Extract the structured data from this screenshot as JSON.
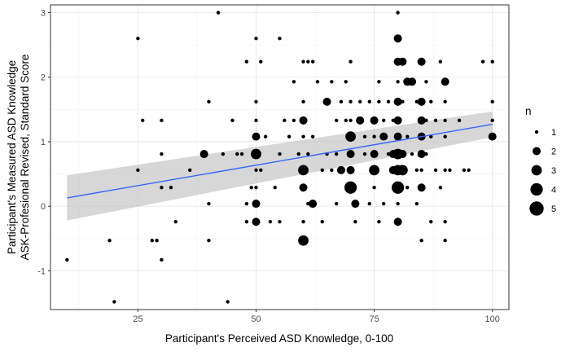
{
  "chart_data": {
    "type": "scatter",
    "xlabel": "Participant's Perceived ASD Knowledge, 0-100",
    "ylabel_line1": "Participant's Measured ASD Knowledge",
    "ylabel_line2": "ASK-Profesional Revised, Standard Score",
    "xlim": [
      6.5,
      103.5
    ],
    "ylim": [
      -1.6,
      3.12
    ],
    "x_ticks": [
      25,
      50,
      75,
      100
    ],
    "y_ticks": [
      -1,
      0,
      1,
      2,
      3
    ],
    "x_minor": [
      12.5,
      37.5,
      62.5,
      87.5
    ],
    "y_minor": [
      -0.5,
      0.5,
      1.5,
      2.5
    ],
    "grid": true,
    "legend": {
      "title": "n",
      "placement": "right",
      "entries": [
        1,
        2,
        3,
        4,
        5
      ]
    },
    "trend": {
      "method": "linear fit with confidence band",
      "color": "#3366FF",
      "band_color": "#bdbdbd",
      "x": [
        10,
        100
      ],
      "y": [
        0.13,
        1.27
      ],
      "band_lower": [
        -0.22,
        1.07
      ],
      "band_upper": [
        0.48,
        1.47
      ]
    },
    "points": [
      {
        "x": 10,
        "y": -0.83,
        "n": 1
      },
      {
        "x": 19,
        "y": -0.53,
        "n": 1
      },
      {
        "x": 20,
        "y": -1.48,
        "n": 1
      },
      {
        "x": 25,
        "y": 2.6,
        "n": 1
      },
      {
        "x": 25,
        "y": 0.56,
        "n": 1
      },
      {
        "x": 26,
        "y": 1.33,
        "n": 1
      },
      {
        "x": 28,
        "y": -0.53,
        "n": 1
      },
      {
        "x": 29,
        "y": -0.53,
        "n": 1
      },
      {
        "x": 30,
        "y": 1.33,
        "n": 1
      },
      {
        "x": 30,
        "y": 0.81,
        "n": 1
      },
      {
        "x": 30,
        "y": 0.29,
        "n": 1
      },
      {
        "x": 30,
        "y": -0.83,
        "n": 1
      },
      {
        "x": 32,
        "y": 0.29,
        "n": 1
      },
      {
        "x": 33,
        "y": -0.24,
        "n": 1
      },
      {
        "x": 36,
        "y": 0.56,
        "n": 1
      },
      {
        "x": 39,
        "y": 0.81,
        "n": 2
      },
      {
        "x": 40,
        "y": 1.62,
        "n": 1
      },
      {
        "x": 40,
        "y": 0.04,
        "n": 1
      },
      {
        "x": 40,
        "y": -0.53,
        "n": 1
      },
      {
        "x": 42,
        "y": 3.0,
        "n": 1
      },
      {
        "x": 43,
        "y": 0.81,
        "n": 1
      },
      {
        "x": 44,
        "y": -1.48,
        "n": 1
      },
      {
        "x": 45,
        "y": 1.33,
        "n": 1
      },
      {
        "x": 46,
        "y": 0.81,
        "n": 1
      },
      {
        "x": 47,
        "y": 0.81,
        "n": 1
      },
      {
        "x": 48,
        "y": 2.24,
        "n": 1
      },
      {
        "x": 48,
        "y": 0.04,
        "n": 1
      },
      {
        "x": 48,
        "y": -0.24,
        "n": 1
      },
      {
        "x": 49,
        "y": 0.29,
        "n": 1
      },
      {
        "x": 50,
        "y": 2.6,
        "n": 1
      },
      {
        "x": 50,
        "y": 1.62,
        "n": 1
      },
      {
        "x": 50,
        "y": 1.33,
        "n": 1
      },
      {
        "x": 50,
        "y": 1.08,
        "n": 2
      },
      {
        "x": 50,
        "y": 0.81,
        "n": 3
      },
      {
        "x": 50,
        "y": 0.56,
        "n": 1
      },
      {
        "x": 50,
        "y": 0.29,
        "n": 1
      },
      {
        "x": 50,
        "y": 0.04,
        "n": 2
      },
      {
        "x": 50,
        "y": -0.24,
        "n": 2
      },
      {
        "x": 51,
        "y": 2.24,
        "n": 1
      },
      {
        "x": 51,
        "y": 0.56,
        "n": 1
      },
      {
        "x": 52,
        "y": 1.08,
        "n": 1
      },
      {
        "x": 53,
        "y": -0.24,
        "n": 1
      },
      {
        "x": 54,
        "y": 0.29,
        "n": 1
      },
      {
        "x": 55,
        "y": 2.6,
        "n": 1
      },
      {
        "x": 55,
        "y": 0.81,
        "n": 1
      },
      {
        "x": 55,
        "y": -0.24,
        "n": 1
      },
      {
        "x": 56,
        "y": 1.33,
        "n": 1
      },
      {
        "x": 57,
        "y": 1.08,
        "n": 1
      },
      {
        "x": 58,
        "y": 1.93,
        "n": 1
      },
      {
        "x": 58,
        "y": 1.33,
        "n": 1
      },
      {
        "x": 59,
        "y": 0.81,
        "n": 1
      },
      {
        "x": 60,
        "y": 2.24,
        "n": 1
      },
      {
        "x": 60,
        "y": 1.62,
        "n": 1
      },
      {
        "x": 60,
        "y": 1.33,
        "n": 2
      },
      {
        "x": 60,
        "y": 1.08,
        "n": 1
      },
      {
        "x": 60,
        "y": 0.56,
        "n": 3
      },
      {
        "x": 60,
        "y": 0.29,
        "n": 2
      },
      {
        "x": 60,
        "y": -0.24,
        "n": 1
      },
      {
        "x": 60,
        "y": -0.53,
        "n": 3
      },
      {
        "x": 61,
        "y": 2.24,
        "n": 1
      },
      {
        "x": 61,
        "y": 0.81,
        "n": 1
      },
      {
        "x": 61,
        "y": 0.04,
        "n": 1
      },
      {
        "x": 62,
        "y": 2.24,
        "n": 1
      },
      {
        "x": 62,
        "y": 1.08,
        "n": 1
      },
      {
        "x": 62,
        "y": 0.04,
        "n": 2
      },
      {
        "x": 63,
        "y": 1.93,
        "n": 1
      },
      {
        "x": 64,
        "y": 0.56,
        "n": 1
      },
      {
        "x": 64,
        "y": -0.24,
        "n": 1
      },
      {
        "x": 65,
        "y": 1.62,
        "n": 2
      },
      {
        "x": 65,
        "y": 0.81,
        "n": 1
      },
      {
        "x": 66,
        "y": 1.93,
        "n": 1
      },
      {
        "x": 66,
        "y": 0.56,
        "n": 1
      },
      {
        "x": 67,
        "y": 1.33,
        "n": 1
      },
      {
        "x": 67,
        "y": 0.81,
        "n": 1
      },
      {
        "x": 67,
        "y": 0.04,
        "n": 1
      },
      {
        "x": 68,
        "y": 1.62,
        "n": 1
      },
      {
        "x": 68,
        "y": 0.56,
        "n": 2
      },
      {
        "x": 69,
        "y": 1.93,
        "n": 1
      },
      {
        "x": 69,
        "y": 1.33,
        "n": 1
      },
      {
        "x": 70,
        "y": 2.24,
        "n": 1
      },
      {
        "x": 70,
        "y": 1.62,
        "n": 1
      },
      {
        "x": 70,
        "y": 1.33,
        "n": 1
      },
      {
        "x": 70,
        "y": 1.08,
        "n": 3
      },
      {
        "x": 70,
        "y": 0.81,
        "n": 2
      },
      {
        "x": 70,
        "y": 0.56,
        "n": 2
      },
      {
        "x": 70,
        "y": 0.29,
        "n": 4
      },
      {
        "x": 71,
        "y": 0.04,
        "n": 2
      },
      {
        "x": 71,
        "y": -0.24,
        "n": 1
      },
      {
        "x": 72,
        "y": 1.62,
        "n": 1
      },
      {
        "x": 72,
        "y": 1.33,
        "n": 2
      },
      {
        "x": 73,
        "y": 1.08,
        "n": 1
      },
      {
        "x": 73,
        "y": 0.81,
        "n": 1
      },
      {
        "x": 74,
        "y": 1.62,
        "n": 1
      },
      {
        "x": 74,
        "y": 0.04,
        "n": 1
      },
      {
        "x": 75,
        "y": 1.33,
        "n": 2
      },
      {
        "x": 75,
        "y": 1.08,
        "n": 1
      },
      {
        "x": 75,
        "y": 0.81,
        "n": 2
      },
      {
        "x": 75,
        "y": 0.56,
        "n": 3
      },
      {
        "x": 75,
        "y": 0.29,
        "n": 1
      },
      {
        "x": 76,
        "y": 1.93,
        "n": 1
      },
      {
        "x": 76,
        "y": 1.62,
        "n": 1
      },
      {
        "x": 76,
        "y": -0.24,
        "n": 1
      },
      {
        "x": 77,
        "y": 1.33,
        "n": 1
      },
      {
        "x": 77,
        "y": 1.08,
        "n": 2
      },
      {
        "x": 77,
        "y": 0.04,
        "n": 1
      },
      {
        "x": 78,
        "y": 1.62,
        "n": 1
      },
      {
        "x": 78,
        "y": 0.81,
        "n": 1
      },
      {
        "x": 79,
        "y": 0.56,
        "n": 2
      },
      {
        "x": 79,
        "y": 1.33,
        "n": 1
      },
      {
        "x": 79,
        "y": 0.81,
        "n": 2
      },
      {
        "x": 80,
        "y": 3.0,
        "n": 1
      },
      {
        "x": 80,
        "y": 2.6,
        "n": 2
      },
      {
        "x": 80,
        "y": 2.24,
        "n": 2
      },
      {
        "x": 80,
        "y": 1.93,
        "n": 1
      },
      {
        "x": 80,
        "y": 1.62,
        "n": 2
      },
      {
        "x": 80,
        "y": 1.33,
        "n": 2
      },
      {
        "x": 80,
        "y": 1.08,
        "n": 2
      },
      {
        "x": 80,
        "y": 0.81,
        "n": 3
      },
      {
        "x": 80,
        "y": 0.56,
        "n": 3
      },
      {
        "x": 80,
        "y": 0.29,
        "n": 4
      },
      {
        "x": 80,
        "y": 0.04,
        "n": 1
      },
      {
        "x": 80,
        "y": -0.24,
        "n": 2
      },
      {
        "x": 81,
        "y": 2.24,
        "n": 2
      },
      {
        "x": 81,
        "y": 1.62,
        "n": 1
      },
      {
        "x": 81,
        "y": 0.81,
        "n": 2
      },
      {
        "x": 81,
        "y": 0.56,
        "n": 3
      },
      {
        "x": 82,
        "y": 1.93,
        "n": 2
      },
      {
        "x": 82,
        "y": 1.08,
        "n": 1
      },
      {
        "x": 82,
        "y": 0.29,
        "n": 1
      },
      {
        "x": 83,
        "y": 1.93,
        "n": 2
      },
      {
        "x": 83,
        "y": 0.81,
        "n": 1
      },
      {
        "x": 84,
        "y": 1.62,
        "n": 1
      },
      {
        "x": 84,
        "y": 0.56,
        "n": 1
      },
      {
        "x": 84,
        "y": 0.04,
        "n": 1
      },
      {
        "x": 85,
        "y": 2.24,
        "n": 2
      },
      {
        "x": 85,
        "y": 1.62,
        "n": 2
      },
      {
        "x": 85,
        "y": 1.33,
        "n": 2
      },
      {
        "x": 85,
        "y": 1.08,
        "n": 2
      },
      {
        "x": 85,
        "y": 0.81,
        "n": 2
      },
      {
        "x": 85,
        "y": 0.56,
        "n": 1
      },
      {
        "x": 85,
        "y": 0.29,
        "n": 2
      },
      {
        "x": 85,
        "y": -0.53,
        "n": 1
      },
      {
        "x": 86,
        "y": 1.93,
        "n": 1
      },
      {
        "x": 86,
        "y": 1.33,
        "n": 1
      },
      {
        "x": 86,
        "y": 0.81,
        "n": 1
      },
      {
        "x": 87,
        "y": 1.62,
        "n": 1
      },
      {
        "x": 87,
        "y": 1.08,
        "n": 1
      },
      {
        "x": 87,
        "y": -0.24,
        "n": 1
      },
      {
        "x": 88,
        "y": 0.56,
        "n": 1
      },
      {
        "x": 88,
        "y": 1.33,
        "n": 1
      },
      {
        "x": 89,
        "y": 2.24,
        "n": 1
      },
      {
        "x": 89,
        "y": 0.29,
        "n": 1
      },
      {
        "x": 90,
        "y": 1.93,
        "n": 2
      },
      {
        "x": 90,
        "y": 1.62,
        "n": 1
      },
      {
        "x": 90,
        "y": 1.33,
        "n": 1
      },
      {
        "x": 90,
        "y": 1.08,
        "n": 1
      },
      {
        "x": 90,
        "y": 0.56,
        "n": 1
      },
      {
        "x": 90,
        "y": -0.24,
        "n": 1
      },
      {
        "x": 90,
        "y": -0.53,
        "n": 1
      },
      {
        "x": 91,
        "y": 0.56,
        "n": 1
      },
      {
        "x": 93,
        "y": 1.33,
        "n": 1
      },
      {
        "x": 94,
        "y": 0.56,
        "n": 1
      },
      {
        "x": 95,
        "y": 0.56,
        "n": 1
      },
      {
        "x": 98,
        "y": 2.24,
        "n": 1
      },
      {
        "x": 100,
        "y": 2.24,
        "n": 1
      },
      {
        "x": 100,
        "y": 1.62,
        "n": 1
      },
      {
        "x": 100,
        "y": 1.33,
        "n": 1
      },
      {
        "x": 100,
        "y": 1.08,
        "n": 2
      }
    ]
  }
}
